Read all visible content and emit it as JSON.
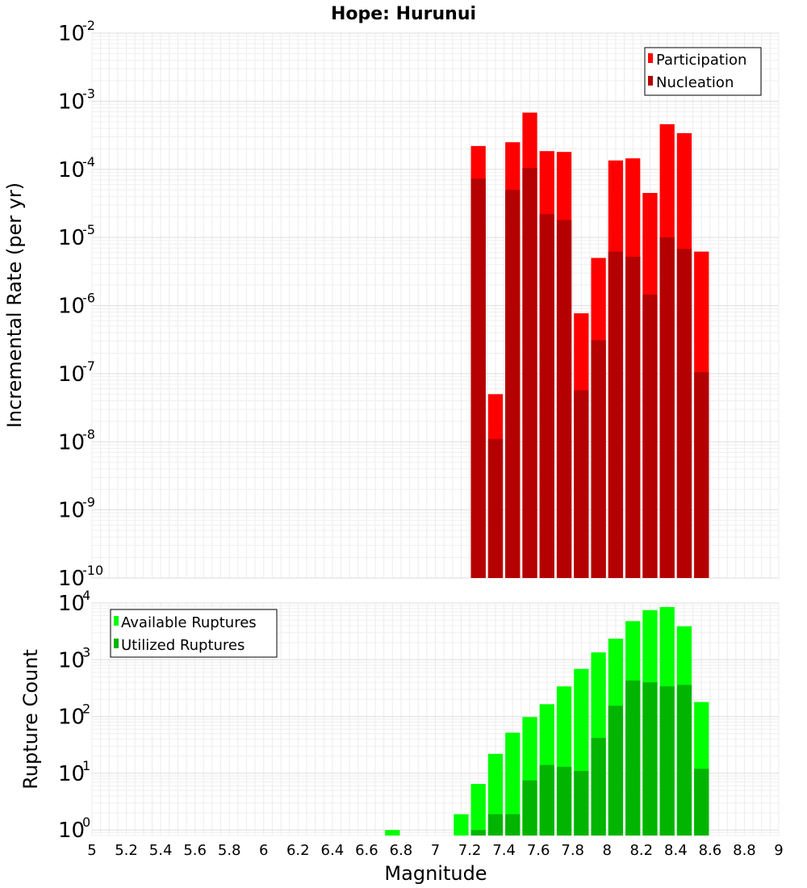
{
  "chart_data": [
    {
      "type": "bar",
      "title": "Hope: Hurunui",
      "xlabel": "Magnitude",
      "ylabel": "Incremental Rate (per yr)",
      "yscale": "log",
      "ylim": [
        1e-10,
        0.01
      ],
      "xlim": [
        5,
        9
      ],
      "bin_width": 0.1,
      "grid": true,
      "legend_position": "top-right",
      "x": [
        7.25,
        7.35,
        7.45,
        7.55,
        7.65,
        7.75,
        7.85,
        7.95,
        8.05,
        8.15,
        8.25,
        8.35,
        8.45,
        8.55
      ],
      "series": [
        {
          "name": "Participation",
          "color": "#ff0000",
          "values": [
            0.00022,
            5e-08,
            0.00025,
            0.00068,
            0.000185,
            0.00018,
            7.7e-07,
            5e-06,
            0.000135,
            0.000145,
            4.5e-05,
            0.00046,
            0.00034,
            6.2e-06
          ]
        },
        {
          "name": "Nucleation",
          "color": "#b40000",
          "values": [
            7.3e-05,
            1.1e-08,
            5e-05,
            0.000105,
            2.2e-05,
            1.8e-05,
            5.7e-08,
            3.1e-07,
            6.2e-06,
            5.2e-06,
            1.45e-06,
            1e-05,
            6.8e-06,
            1.05e-07
          ]
        }
      ],
      "ytick_bases": [
        "10",
        "10",
        "10",
        "10",
        "10",
        "10",
        "10",
        "10",
        "10"
      ],
      "ytick_exponents": [
        "-10",
        "-9",
        "-8",
        "-7",
        "-6",
        "-5",
        "-4",
        "-3",
        "-2"
      ]
    },
    {
      "type": "bar",
      "xlabel": "Magnitude",
      "ylabel": "Rupture Count",
      "yscale": "log",
      "ylim": [
        0.8,
        10000
      ],
      "xlim": [
        5,
        9
      ],
      "bin_width": 0.1,
      "grid": true,
      "legend_position": "top-left",
      "x": [
        6.75,
        7.15,
        7.25,
        7.35,
        7.45,
        7.55,
        7.65,
        7.75,
        7.85,
        7.95,
        8.05,
        8.15,
        8.25,
        8.35,
        8.45,
        8.55
      ],
      "series": [
        {
          "name": "Available Ruptures",
          "color": "#00ff00",
          "values": [
            1,
            1.9,
            6.5,
            22,
            52,
            98,
            165,
            340,
            690,
            1350,
            2350,
            4800,
            7500,
            8500,
            3900,
            180
          ]
        },
        {
          "name": "Utilized Ruptures",
          "color": "#00b400",
          "values": [
            0,
            0,
            1,
            1.9,
            1.9,
            7.5,
            14,
            13,
            11,
            42,
            155,
            430,
            400,
            340,
            360,
            12
          ]
        }
      ],
      "ytick_bases": [
        "10",
        "10",
        "10",
        "10",
        "10"
      ],
      "ytick_exponents": [
        "0",
        "1",
        "2",
        "3",
        "4"
      ],
      "xticks": [
        "5",
        "5.2",
        "5.4",
        "5.6",
        "5.8",
        "6",
        "6.2",
        "6.4",
        "6.6",
        "6.8",
        "7",
        "7.2",
        "7.4",
        "7.6",
        "7.8",
        "8",
        "8.2",
        "8.4",
        "8.6",
        "8.8",
        "9"
      ]
    }
  ]
}
